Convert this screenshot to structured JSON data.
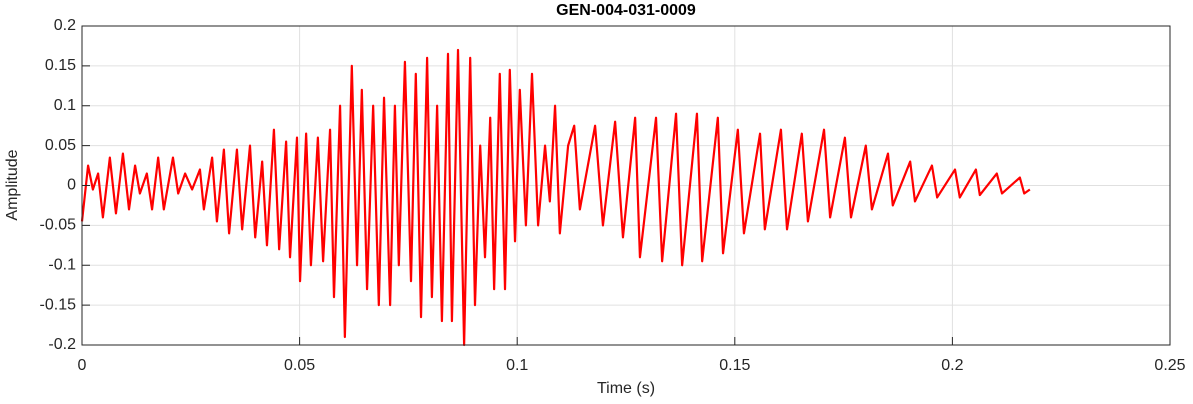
{
  "chart_data": {
    "type": "line",
    "title": "GEN-004-031-0009",
    "x_label": "Time (s)",
    "y_label": "Amplitude",
    "xlim": [
      0,
      0.25
    ],
    "xticks": [
      0,
      0.05,
      0.1,
      0.15,
      0.2,
      0.25
    ],
    "ylim": [
      -0.2,
      0.2
    ],
    "yticks": [
      -0.2,
      -0.15,
      -0.1,
      -0.05,
      0,
      0.05,
      0.1,
      0.15,
      0.2
    ],
    "grid": true,
    "x": [
      0,
      0.0014,
      0.0025,
      0.0037,
      0.0048,
      0.0064,
      0.0078,
      0.0094,
      0.0108,
      0.0122,
      0.0133,
      0.0149,
      0.0161,
      0.0175,
      0.0188,
      0.0209,
      0.0221,
      0.0237,
      0.0253,
      0.0271,
      0.028,
      0.0299,
      0.031,
      0.0326,
      0.0338,
      0.0356,
      0.0368,
      0.0386,
      0.0398,
      0.0414,
      0.0425,
      0.0441,
      0.0453,
      0.0469,
      0.0478,
      0.0494,
      0.0501,
      0.0515,
      0.0526,
      0.0542,
      0.0554,
      0.057,
      0.0579,
      0.0593,
      0.0604,
      0.062,
      0.0632,
      0.0643,
      0.0655,
      0.0669,
      0.0682,
      0.0694,
      0.0708,
      0.0719,
      0.0728,
      0.0742,
      0.0756,
      0.0767,
      0.0779,
      0.0793,
      0.0804,
      0.0816,
      0.0827,
      0.0841,
      0.085,
      0.0864,
      0.0878,
      0.0892,
      0.0903,
      0.0915,
      0.0926,
      0.0938,
      0.0947,
      0.096,
      0.0972,
      0.0983,
      0.0995,
      0.1006,
      0.102,
      0.1034,
      0.1048,
      0.1064,
      0.1075,
      0.1087,
      0.1098,
      0.1117,
      0.1131,
      0.1144,
      0.1179,
      0.1197,
      0.1225,
      0.1243,
      0.1271,
      0.1282,
      0.1319,
      0.1333,
      0.1365,
      0.1379,
      0.1413,
      0.1425,
      0.1461,
      0.1473,
      0.1507,
      0.1521,
      0.1558,
      0.1569,
      0.1606,
      0.162,
      0.1654,
      0.1668,
      0.1705,
      0.1719,
      0.1753,
      0.1767,
      0.1801,
      0.1815,
      0.1852,
      0.1863,
      0.1903,
      0.1914,
      0.1953,
      0.1965,
      0.2006,
      0.2017,
      0.2054,
      0.2063,
      0.2102,
      0.2114,
      0.2155,
      0.2165,
      0.2178
    ],
    "series": [
      {
        "color": "#ff0000",
        "values": [
          -0.045,
          0.025,
          -0.005,
          0.015,
          -0.04,
          0.035,
          -0.035,
          0.04,
          -0.03,
          0.025,
          -0.01,
          0.015,
          -0.03,
          0.035,
          -0.03,
          0.035,
          -0.01,
          0.015,
          -0.005,
          0.02,
          -0.03,
          0.035,
          -0.045,
          0.045,
          -0.06,
          0.045,
          -0.055,
          0.05,
          -0.065,
          0.03,
          -0.075,
          0.07,
          -0.08,
          0.055,
          -0.09,
          0.06,
          -0.12,
          0.065,
          -0.1,
          0.06,
          -0.095,
          0.07,
          -0.14,
          0.1,
          -0.19,
          0.15,
          -0.1,
          0.12,
          -0.13,
          0.1,
          -0.15,
          0.11,
          -0.15,
          0.1,
          -0.1,
          0.155,
          -0.12,
          0.14,
          -0.165,
          0.16,
          -0.14,
          0.1,
          -0.17,
          0.165,
          -0.17,
          0.17,
          -0.2,
          0.16,
          -0.15,
          0.05,
          -0.09,
          0.085,
          -0.13,
          0.14,
          -0.13,
          0.145,
          -0.07,
          0.12,
          -0.05,
          0.14,
          -0.05,
          0.05,
          -0.02,
          0.1,
          -0.06,
          0.05,
          0.075,
          -0.03,
          0.075,
          -0.05,
          0.08,
          -0.065,
          0.085,
          -0.09,
          0.085,
          -0.095,
          0.09,
          -0.1,
          0.09,
          -0.095,
          0.085,
          -0.085,
          0.07,
          -0.06,
          0.065,
          -0.055,
          0.07,
          -0.055,
          0.065,
          -0.045,
          0.07,
          -0.04,
          0.06,
          -0.04,
          0.05,
          -0.03,
          0.04,
          -0.025,
          0.03,
          -0.02,
          0.025,
          -0.015,
          0.02,
          -0.015,
          0.02,
          -0.012,
          0.015,
          -0.01,
          0.01,
          -0.01,
          -0.005
        ]
      }
    ]
  }
}
